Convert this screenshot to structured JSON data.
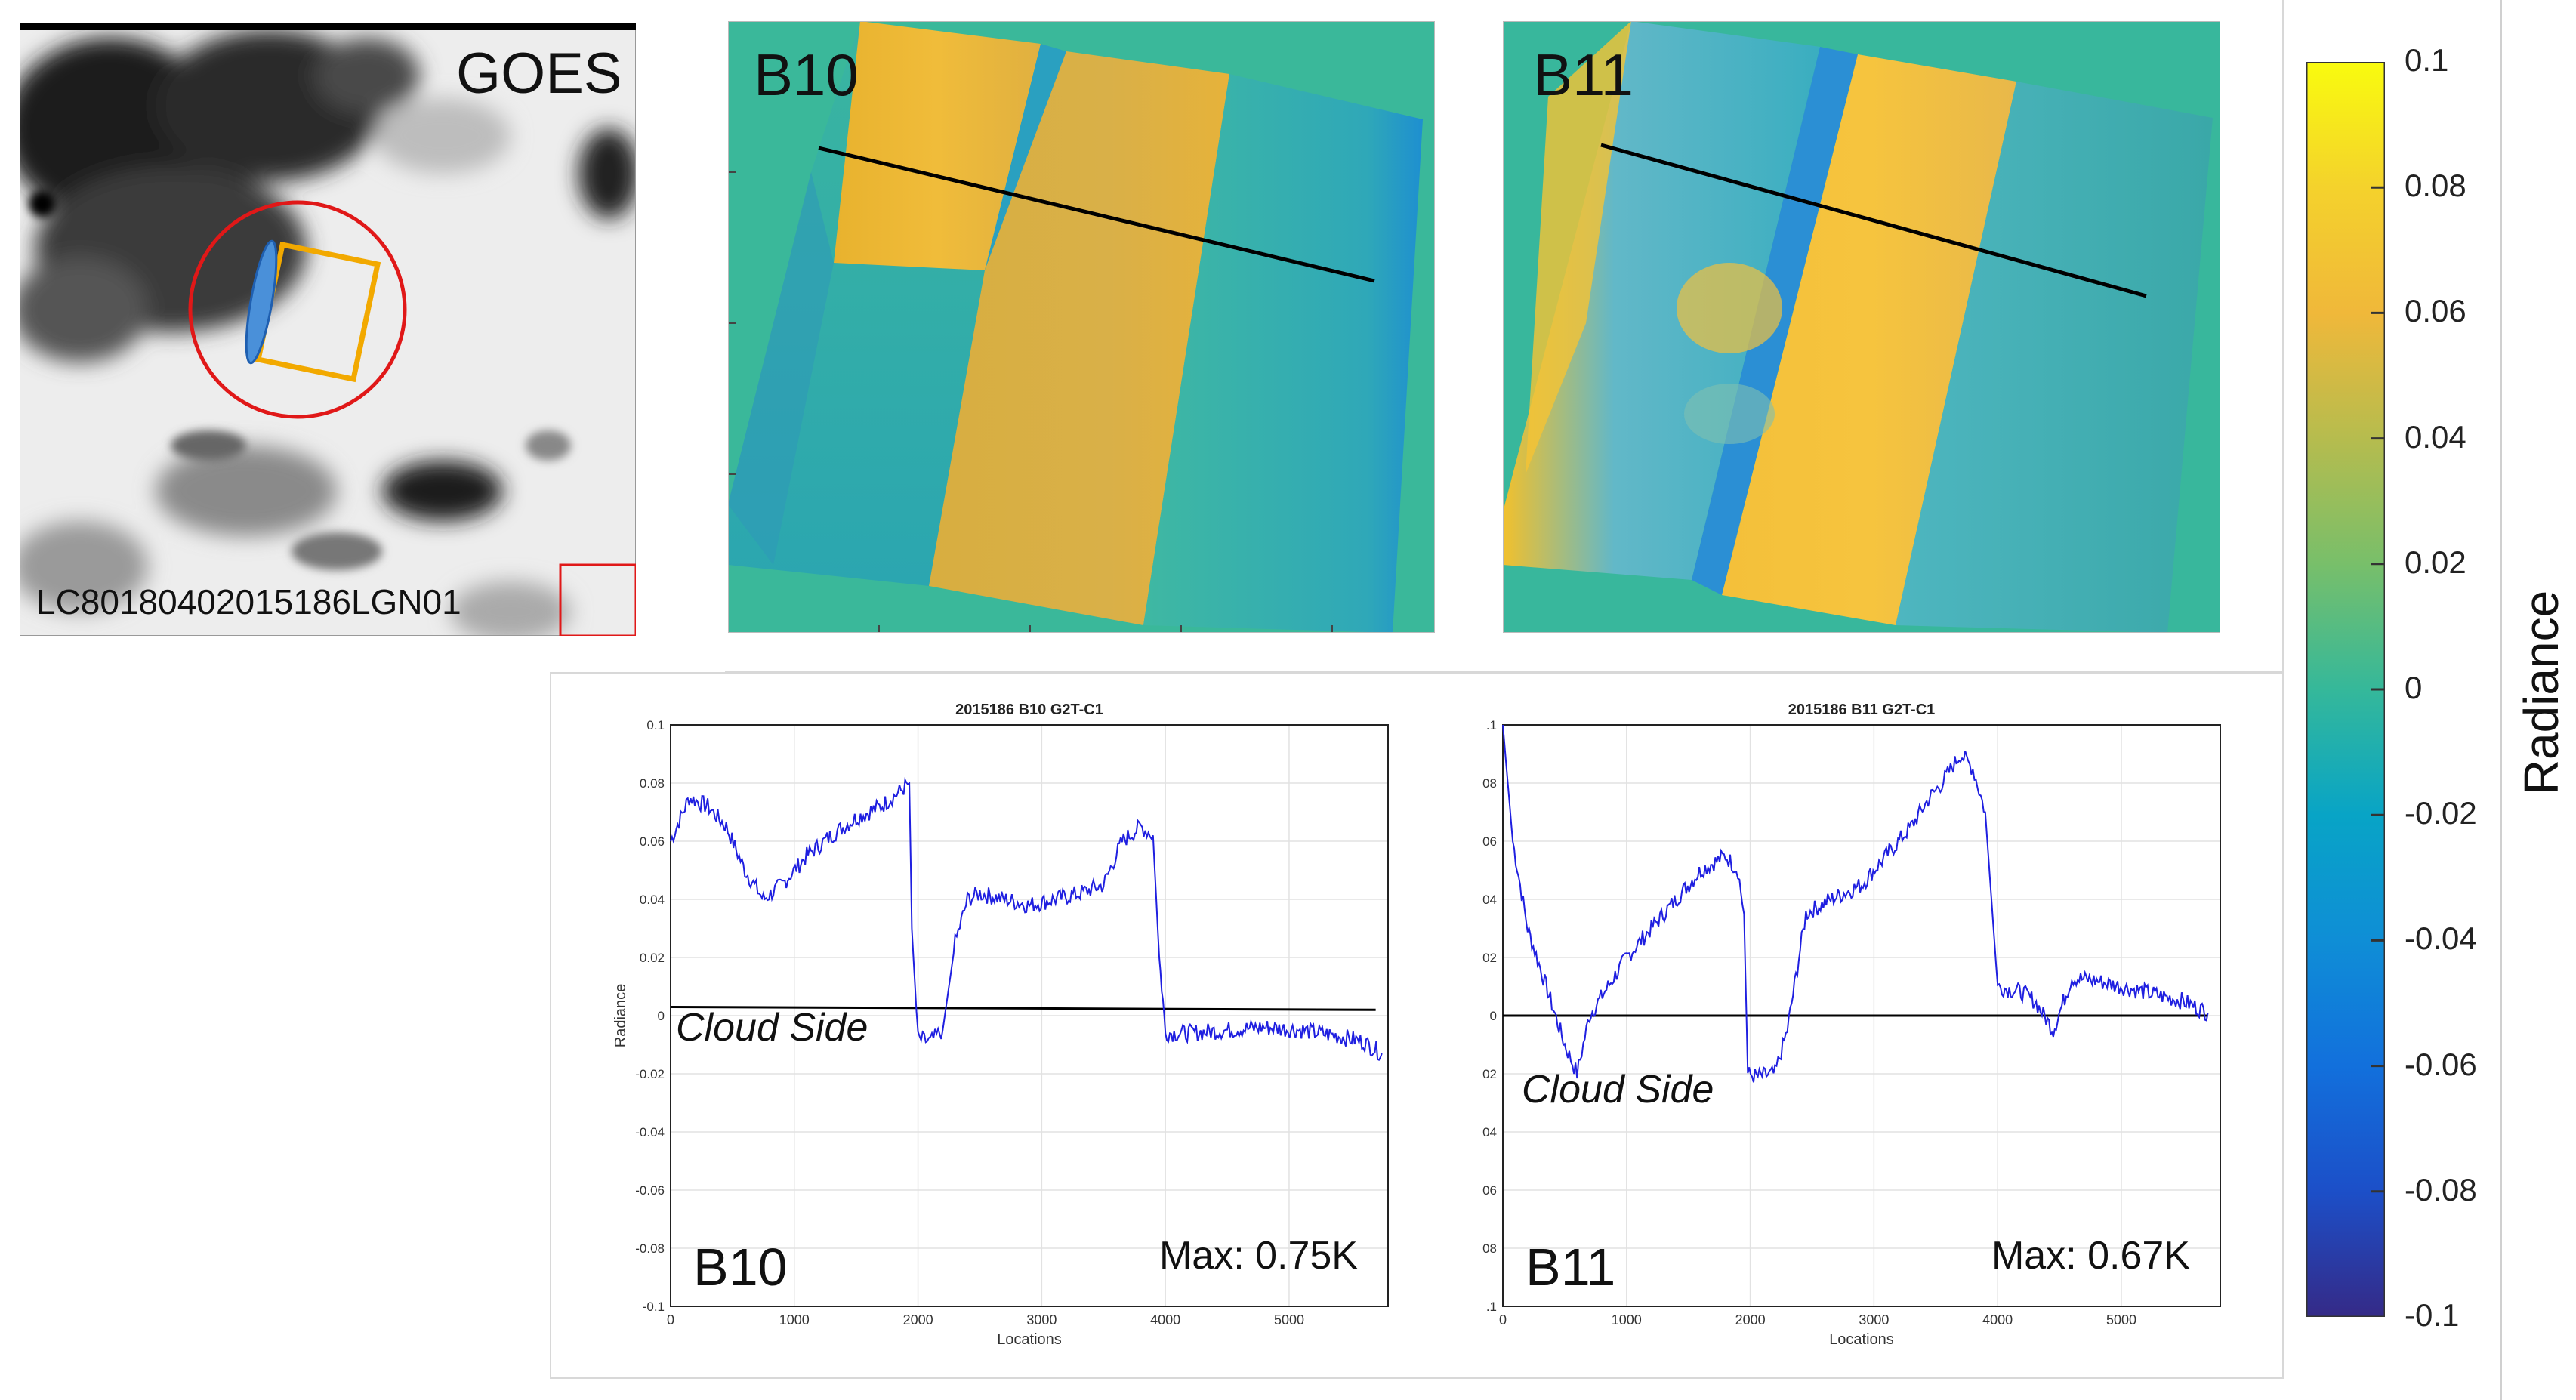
{
  "goes_panel": {
    "label": "GOES",
    "scene_id": "LC80180402015186LGN01"
  },
  "band_maps": [
    {
      "label": "B10"
    },
    {
      "label": "B11"
    }
  ],
  "colorbar": {
    "label": "Radiance",
    "ticks": [
      "0.1",
      "0.08",
      "0.06",
      "0.04",
      "0.02",
      "0",
      "-0.02",
      "-0.04",
      "-0.06",
      "-0.08",
      "-0.1"
    ],
    "range": [
      -0.1,
      0.1
    ],
    "colors": {
      "low": "#352a87",
      "mid_low": "#0f9bd8",
      "mid": "#35b89a",
      "mid_high": "#f0b83a",
      "high": "#f9fb0e"
    }
  },
  "chart_data": [
    {
      "type": "line",
      "title": "2015186 B10 G2T-C1",
      "xlabel": "Locations",
      "ylabel": "Radiance",
      "xlim": [
        0,
        5800
      ],
      "ylim": [
        -0.1,
        0.1
      ],
      "xticks": [
        "0",
        "1000",
        "2000",
        "3000",
        "4000",
        "5000"
      ],
      "yticks": [
        "0.1",
        "0.08",
        "0.06",
        "0.04",
        "0.02",
        "0",
        "-0.02",
        "-0.04",
        "-0.06",
        "-0.08",
        "-0.1"
      ],
      "band_label": "B10",
      "max_text": "Max:  0.75K",
      "annotation": "Cloud Side",
      "series_color": "#1f1fe0",
      "series": [
        {
          "name": "B10 G2T-C1",
          "x": [
            0,
            150,
            300,
            450,
            600,
            750,
            900,
            1100,
            1300,
            1500,
            1700,
            1850,
            1930,
            1950,
            2000,
            2100,
            2200,
            2300,
            2400,
            2500,
            2700,
            2900,
            3100,
            3300,
            3500,
            3650,
            3800,
            3900,
            3950,
            3980,
            4000,
            4200,
            4500,
            4800,
            5100,
            5400,
            5600,
            5750
          ],
          "y": [
            0.06,
            0.075,
            0.072,
            0.065,
            0.05,
            0.04,
            0.045,
            0.055,
            0.062,
            0.068,
            0.072,
            0.077,
            0.08,
            0.03,
            -0.008,
            -0.009,
            -0.005,
            0.025,
            0.04,
            0.042,
            0.04,
            0.038,
            0.04,
            0.042,
            0.045,
            0.06,
            0.065,
            0.062,
            0.02,
            0.005,
            -0.006,
            -0.006,
            -0.005,
            -0.004,
            -0.005,
            -0.007,
            -0.009,
            -0.013
          ]
        }
      ],
      "reference_line": {
        "x": [
          0,
          5700
        ],
        "y": [
          0.003,
          0.002
        ]
      }
    },
    {
      "type": "line",
      "title": "2015186 B11 G2T-C1",
      "xlabel": "Locations",
      "ylabel": "",
      "xlim": [
        0,
        5800
      ],
      "ylim": [
        -0.1,
        0.1
      ],
      "xticks": [
        "0",
        "1000",
        "2000",
        "3000",
        "4000",
        "5000"
      ],
      "yticks": [
        ".1",
        "08",
        "06",
        "04",
        "02",
        "0",
        "02",
        "04",
        "06",
        "08",
        ".1"
      ],
      "band_label": "B11",
      "max_text": "Max:   0.67K",
      "annotation": "Cloud Side",
      "series_color": "#1f1fe0",
      "series": [
        {
          "name": "B11 G2T-C1",
          "x": [
            0,
            80,
            200,
            350,
            500,
            600,
            700,
            850,
            1000,
            1200,
            1400,
            1600,
            1800,
            1900,
            1950,
            1980,
            2050,
            2200,
            2300,
            2450,
            2650,
            2900,
            3100,
            3300,
            3450,
            3550,
            3700,
            3800,
            3900,
            3950,
            4000,
            4200,
            4300,
            4450,
            4600,
            4800,
            5200,
            5500,
            5700
          ],
          "y": [
            0.1,
            0.06,
            0.03,
            0.01,
            -0.01,
            -0.02,
            0.0,
            0.01,
            0.02,
            0.03,
            0.04,
            0.05,
            0.055,
            0.05,
            0.035,
            -0.02,
            -0.021,
            -0.02,
            -0.005,
            0.035,
            0.04,
            0.045,
            0.055,
            0.065,
            0.075,
            0.08,
            0.09,
            0.085,
            0.07,
            0.04,
            0.01,
            0.008,
            0.005,
            -0.005,
            0.013,
            0.012,
            0.008,
            0.005,
            0.001
          ]
        }
      ],
      "reference_line": {
        "x": [
          0,
          5700
        ],
        "y": [
          0.0,
          0.0
        ]
      }
    }
  ]
}
